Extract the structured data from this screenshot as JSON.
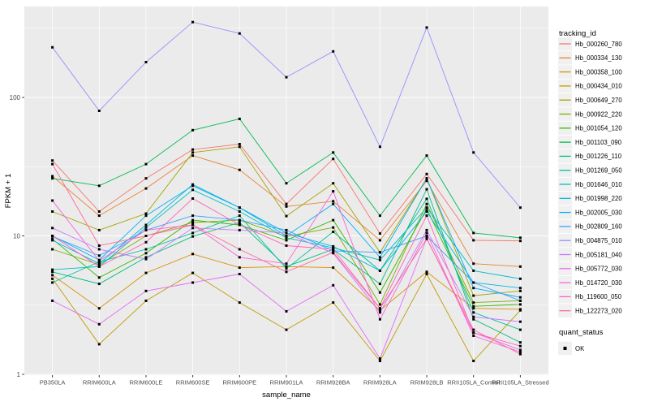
{
  "chart_data": {
    "type": "line",
    "title": "",
    "xlabel": "sample_name",
    "ylabel": "FPKM + 1",
    "y_scale": "log10",
    "y_ticks": [
      1,
      10,
      100
    ],
    "y_minor_ticks": [
      3.162,
      31.62,
      316.2
    ],
    "ylim": [
      1,
      455
    ],
    "grid": true,
    "panel_bg": "#EBEBEB",
    "grid_color": "#FFFFFF",
    "axis_text_color": "#4D4D4D",
    "tick_color": "#333333",
    "point_marker": {
      "shape": "square",
      "color": "#000000"
    },
    "legend": {
      "position": "right",
      "color_title": "tracking_id",
      "shape_title": "quant_status",
      "shape_items": [
        {
          "label": "OK",
          "marker": "black-square"
        }
      ]
    },
    "categories": [
      "PB350LA",
      "RRIM600LA",
      "RRIM600LE",
      "RRIM600SE",
      "RRIM600PE",
      "RRIM901LA",
      "RRIM928BA",
      "RRIM928LA",
      "RRIM928LB",
      "RRII105LA_Control",
      "RRII105LA_Stressed"
    ],
    "series": [
      {
        "name": "Hb_000260_780",
        "color": "#F8766D",
        "values": [
          35,
          15,
          26,
          42,
          46,
          17,
          36,
          10.4,
          28,
          9.3,
          9.2
        ]
      },
      {
        "name": "Hb_000334_130",
        "color": "#EA8331",
        "values": [
          27,
          14,
          22,
          38,
          30,
          16.3,
          17.8,
          9.3,
          25,
          6.3,
          6.0
        ]
      },
      {
        "name": "Hb_000358_100",
        "color": "#D89000",
        "values": [
          5.2,
          3.0,
          5.4,
          7.4,
          5.9,
          6.0,
          5.9,
          2.9,
          5.5,
          3.0,
          2.95
        ]
      },
      {
        "name": "Hb_000434_010",
        "color": "#C09B00",
        "values": [
          4.9,
          1.65,
          3.4,
          5.4,
          3.3,
          2.1,
          3.3,
          1.25,
          5.3,
          1.25,
          2.9
        ]
      },
      {
        "name": "Hb_000649_270",
        "color": "#A3A500",
        "values": [
          15,
          11,
          14.5,
          40,
          44,
          13.9,
          24,
          7.6,
          26,
          3.7,
          4.0
        ]
      },
      {
        "name": "Hb_000922_220",
        "color": "#7CAE00",
        "values": [
          8.0,
          6.2,
          10,
          12.5,
          13,
          9.9,
          11.5,
          3.2,
          17,
          3.3,
          3.4
        ]
      },
      {
        "name": "Hb_001054_120",
        "color": "#39B600",
        "values": [
          9.5,
          5.0,
          7.5,
          13,
          12,
          9.3,
          13,
          3.9,
          15.7,
          3.1,
          3.2
        ]
      },
      {
        "name": "Hb_001103_090",
        "color": "#00BB4E",
        "values": [
          26,
          23,
          33,
          58,
          70,
          24,
          40,
          14,
          38,
          10.5,
          9.7
        ]
      },
      {
        "name": "Hb_001226_110",
        "color": "#00BF7D",
        "values": [
          5.5,
          4.5,
          7.0,
          9.9,
          12.5,
          6.0,
          8.0,
          4.5,
          21.7,
          2.5,
          1.7
        ]
      },
      {
        "name": "Hb_001269_050",
        "color": "#00C1A3",
        "values": [
          4.6,
          6.5,
          8.0,
          10.5,
          14,
          5.8,
          10.7,
          5.6,
          18.5,
          2.8,
          2.1
        ]
      },
      {
        "name": "Hb_001646_010",
        "color": "#00BFC4",
        "values": [
          5.7,
          6.0,
          11.5,
          21.5,
          15,
          9.7,
          8.2,
          6.7,
          16,
          5.6,
          4.9
        ]
      },
      {
        "name": "Hb_001998_220",
        "color": "#00BAE0",
        "values": [
          9.3,
          6.3,
          12,
          23.5,
          16,
          10.5,
          8.4,
          5.6,
          15,
          4.6,
          4.2
        ]
      },
      {
        "name": "Hb_002005_030",
        "color": "#00B0F6",
        "values": [
          10,
          6.7,
          14,
          23,
          16,
          10,
          17,
          7.0,
          26,
          4.2,
          3.6
        ]
      },
      {
        "name": "Hb_002809_160",
        "color": "#35A2FF",
        "values": [
          9.9,
          7.2,
          11,
          14,
          13,
          11,
          7.8,
          7.6,
          10,
          4.6,
          3.4
        ]
      },
      {
        "name": "Hb_004875_010",
        "color": "#9590FF",
        "values": [
          230,
          80,
          180,
          350,
          290,
          140,
          215,
          44,
          320,
          40,
          16
        ]
      },
      {
        "name": "Hb_005181_040",
        "color": "#C77CFF",
        "values": [
          11.4,
          8.0,
          6.8,
          11.4,
          11,
          10.5,
          7.5,
          2.8,
          11,
          2.6,
          2.4
        ]
      },
      {
        "name": "Hb_005772_030",
        "color": "#E76BF3",
        "values": [
          3.4,
          2.3,
          4.0,
          4.6,
          5.3,
          2.85,
          4.4,
          1.3,
          9.6,
          2.0,
          1.5
        ]
      },
      {
        "name": "Hb_014720_030",
        "color": "#FA62DB",
        "values": [
          18,
          6.6,
          11,
          12,
          7.0,
          6.3,
          21,
          2.5,
          10.5,
          1.9,
          1.45
        ]
      },
      {
        "name": "Hb_119600_050",
        "color": "#FF62BC",
        "values": [
          10,
          6.0,
          9.0,
          18.6,
          12,
          8.5,
          8.0,
          3.0,
          14,
          2.0,
          1.6
        ]
      },
      {
        "name": "Hb_122273_020",
        "color": "#FF6A98",
        "values": [
          33,
          8.5,
          10,
          12,
          8.0,
          5.5,
          7.6,
          3.0,
          9.5,
          2.1,
          1.4
        ]
      }
    ]
  }
}
